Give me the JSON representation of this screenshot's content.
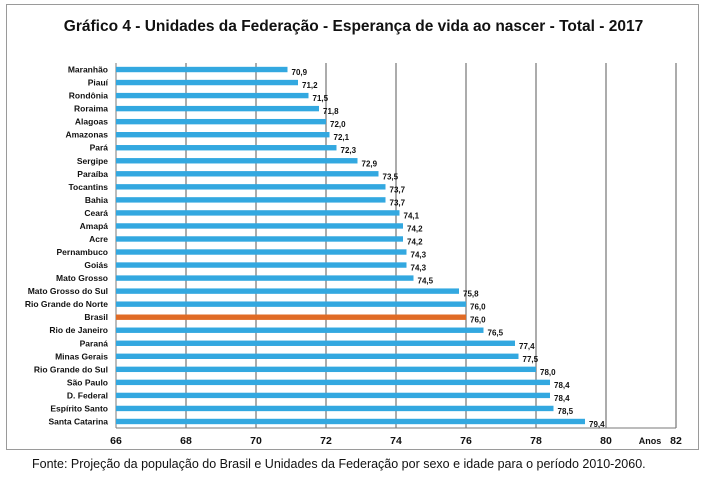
{
  "chart_data": {
    "type": "bar",
    "orientation": "horizontal",
    "title": "Gráfico 4 - Unidades da Federação - Esperança de vida ao nascer - Total - 2017",
    "xlabel": "Anos",
    "ylabel": "",
    "xlim": [
      66,
      82
    ],
    "xticks": [
      "66",
      "68",
      "70",
      "72",
      "74",
      "76",
      "78",
      "80",
      "82"
    ],
    "grid": true,
    "colors": {
      "default": "#33a8e0",
      "highlight": "#e06b26",
      "grid": "#5a5a5a"
    },
    "highlight": "Brasil",
    "categories": [
      "Maranhão",
      "Piauí",
      "Rondônia",
      "Roraima",
      "Alagoas",
      "Amazonas",
      "Pará",
      "Sergipe",
      "Paraíba",
      "Tocantins",
      "Bahia",
      "Ceará",
      "Amapá",
      "Acre",
      "Pernambuco",
      "Goiás",
      "Mato Grosso",
      "Mato Grosso do Sul",
      "Rio Grande do Norte",
      "Brasil",
      "Rio de Janeiro",
      "Paraná",
      "Minas Gerais",
      "Rio Grande do Sul",
      "São Paulo",
      "D. Federal",
      "Espírito Santo",
      "Santa Catarina"
    ],
    "values": [
      70.9,
      71.2,
      71.5,
      71.8,
      72.0,
      72.1,
      72.3,
      72.9,
      73.5,
      73.7,
      73.7,
      74.1,
      74.2,
      74.2,
      74.3,
      74.3,
      74.5,
      75.8,
      76.0,
      76.0,
      76.5,
      77.4,
      77.5,
      78.0,
      78.4,
      78.4,
      78.5,
      79.4
    ],
    "value_labels": [
      "70,9",
      "71,2",
      "71,5",
      "71,8",
      "72,0",
      "72,1",
      "72,3",
      "72,9",
      "73,5",
      "73,7",
      "73,7",
      "74,1",
      "74,2",
      "74,2",
      "74,3",
      "74,3",
      "74,5",
      "75,8",
      "76,0",
      "76,0",
      "76,5",
      "77,4",
      "77,5",
      "78,0",
      "78,4",
      "78,4",
      "78,5",
      "79,4"
    ]
  },
  "source": "Fonte: Projeção da população do Brasil e Unidades da Federação por sexo e idade para o período 2010-2060."
}
